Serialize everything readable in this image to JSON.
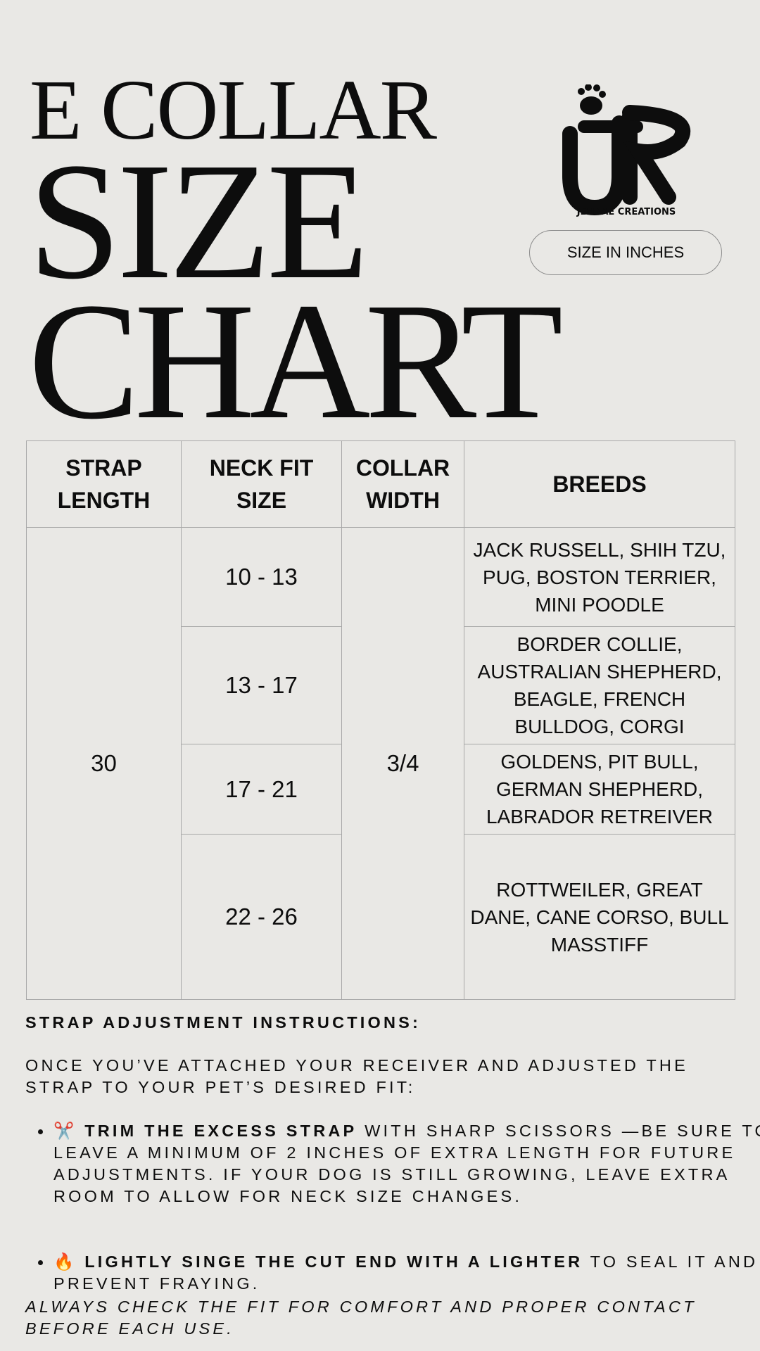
{
  "title": {
    "line1": "E COLLAR",
    "line2": "SIZE",
    "line3": "CHART"
  },
  "brand": {
    "name": "JENRAE CREATIONS",
    "logo_text": "JR"
  },
  "unit_badge": "SIZE IN INCHES",
  "table": {
    "headers": [
      "STRAP LENGTH",
      "NECK FIT SIZE",
      "COLLAR WIDTH",
      "BREEDS"
    ],
    "strap_length": "30",
    "collar_width": "3/4",
    "rows": [
      {
        "neck": "10 - 13",
        "breeds": "JACK RUSSELL, SHIH TZU, PUG, BOSTON TERRIER, MINI POODLE"
      },
      {
        "neck": "13 - 17",
        "breeds": "BORDER COLLIE, AUSTRALIAN SHEPHERD, BEAGLE, FRENCH BULLDOG, CORGI"
      },
      {
        "neck": "17 - 21",
        "breeds": "GOLDENS, PIT BULL, GERMAN SHEPHERD, LABRADOR RETREIVER"
      },
      {
        "neck": "22 - 26",
        "breeds": "ROTTWEILER, GREAT DANE, CANE CORSO, BULL MASSTIFF"
      }
    ]
  },
  "instructions": {
    "heading": "STRAP ADJUSTMENT INSTRUCTIONS:",
    "intro": "ONCE YOU’VE ATTACHED YOUR RECEIVER AND ADJUSTED THE STRAP TO YOUR PET’S DESIRED FIT:",
    "steps": [
      {
        "icon": "scissors-icon",
        "emoji": "✂️",
        "bold": "TRIM THE EXCESS STRAP",
        "text": " WITH SHARP SCISSORS —BE SURE TO LEAVE A MINIMUM OF 2 INCHES OF EXTRA LENGTH FOR FUTURE ADJUSTMENTS. IF YOUR DOG IS STILL GROWING, LEAVE EXTRA ROOM TO ALLOW FOR NECK SIZE CHANGES."
      },
      {
        "icon": "fire-icon",
        "emoji": "🔥",
        "bold": "LIGHTLY SINGE THE CUT END WITH A LIGHTER",
        "text": " TO SEAL IT AND PREVENT FRAYING."
      }
    ],
    "note": "ALWAYS CHECK THE FIT FOR COMFORT AND PROPER CONTACT BEFORE EACH USE."
  }
}
